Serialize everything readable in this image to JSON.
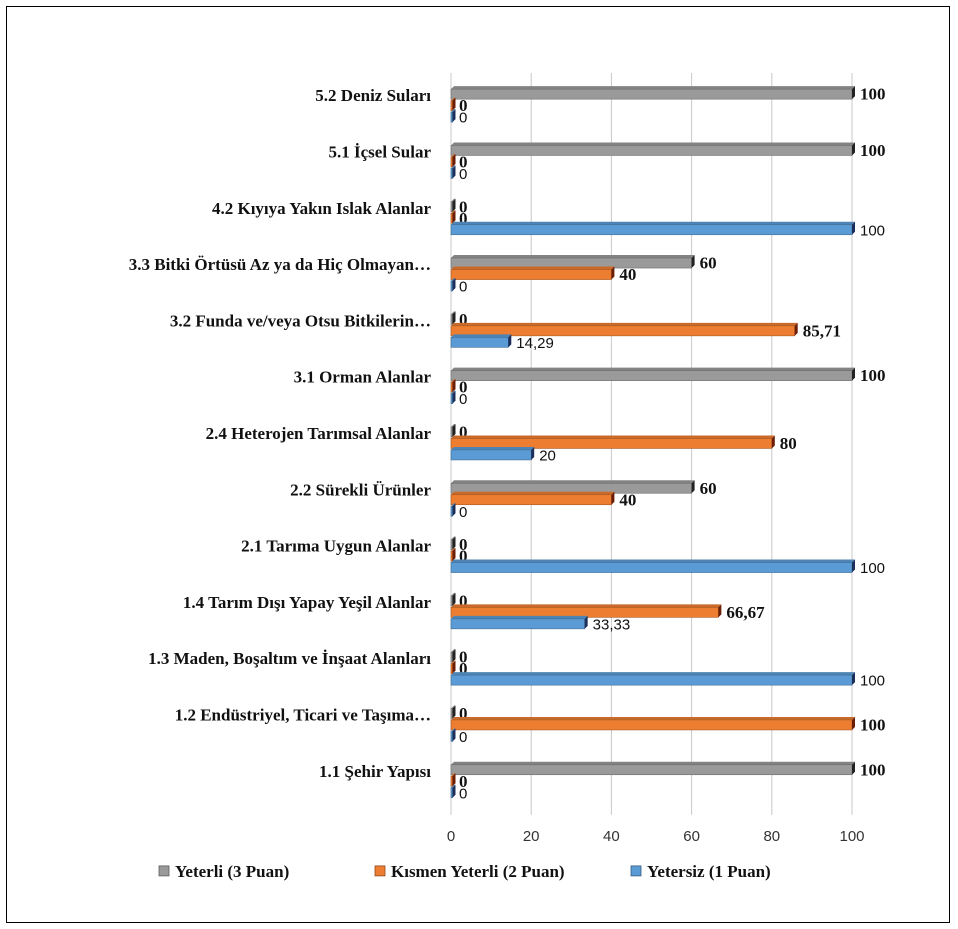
{
  "chart_data": {
    "type": "bar",
    "orientation": "horizontal",
    "categories": [
      "5.2 Deniz Suları",
      "5.1 İçsel Sular",
      "4.2 Kıyıya Yakın Islak Alanlar",
      "3.3 Bitki Örtüsü Az ya da Hiç Olmayan…",
      "3.2 Funda ve/veya Otsu Bitkilerin…",
      "3.1 Orman Alanlar",
      "2.4 Heterojen Tarımsal Alanlar",
      "2.2 Sürekli Ürünler",
      "2.1 Tarıma Uygun Alanlar",
      "1.4 Tarım Dışı Yapay Yeşil Alanlar",
      "1.3 Maden, Boşaltım ve İnşaat Alanları",
      "1.2 Endüstriyel, Ticari ve Taşıma…",
      "1.1 Şehir Yapısı"
    ],
    "series": [
      {
        "name": "Yeterli (3 Puan)",
        "color": "#9a9a9a",
        "values": [
          100,
          100,
          0,
          60,
          0,
          100,
          0,
          60,
          0,
          0,
          0,
          0,
          100
        ],
        "labels": [
          "100",
          "100",
          "0",
          "60",
          "0",
          "100",
          "0",
          "60",
          "0",
          "0",
          "0",
          "0",
          "100"
        ]
      },
      {
        "name": "Kısmen Yeterli (2 Puan)",
        "color": "#ed7d31",
        "values": [
          0,
          0,
          0,
          40,
          85.71,
          0,
          80,
          40,
          0,
          66.67,
          0,
          100,
          0
        ],
        "labels": [
          "0",
          "0",
          "0",
          "40",
          "85,71",
          "0",
          "80",
          "40",
          "0",
          "66,67",
          "0",
          "100",
          "0"
        ]
      },
      {
        "name": "Yetersiz (1 Puan)",
        "color": "#5b9bd5",
        "values": [
          0,
          0,
          100,
          0,
          14.29,
          0,
          20,
          0,
          100,
          33.33,
          100,
          0,
          0
        ],
        "labels": [
          "0",
          "0",
          "100",
          "0",
          "14,29",
          "0",
          "20",
          "0",
          "100",
          "33,33",
          "100",
          "0",
          "0"
        ]
      }
    ],
    "xlim": [
      0,
      100
    ],
    "xticks": [
      "0",
      "20",
      "40",
      "60",
      "80",
      "100"
    ],
    "grid": true,
    "legend_position": "bottom"
  }
}
